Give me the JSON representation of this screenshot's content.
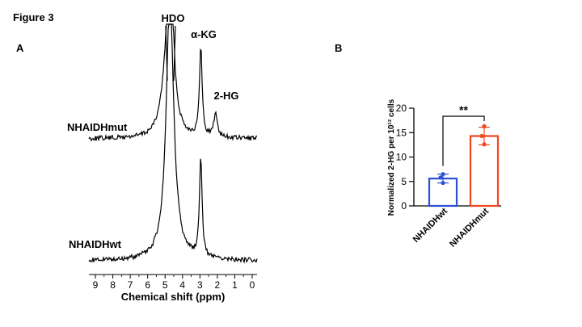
{
  "figure_title": "Figure 3",
  "colors": {
    "wt": "#2b4fd6",
    "mut": "#f0461e",
    "ink": "#000000"
  },
  "chart_data": [
    {
      "panel": "A",
      "type": "line",
      "xlabel": "Chemical shift (ppm)",
      "x_ticks": [
        9,
        8,
        7,
        6,
        5,
        4,
        3,
        2,
        1,
        0
      ],
      "x_reversed": true,
      "xlim": [
        9,
        0
      ],
      "peak_labels": [
        "HDO",
        "α-KG",
        "2-HG"
      ],
      "series": [
        {
          "name": "NHAIDHmut",
          "peaks": [
            {
              "label": "HDO",
              "ppm": 4.72,
              "relative_height": 1.0
            },
            {
              "label": "α-KG",
              "ppm": 2.95,
              "relative_height": 0.95
            },
            {
              "label": "2-HG",
              "ppm": 2.1,
              "relative_height": 0.24
            }
          ]
        },
        {
          "name": "NHAIDHwt",
          "peaks": [
            {
              "label": "HDO",
              "ppm": 4.72,
              "relative_height": 1.0
            },
            {
              "label": "α-KG",
              "ppm": 2.95,
              "relative_height": 0.95
            }
          ]
        }
      ]
    },
    {
      "panel": "B",
      "type": "bar",
      "ylabel": "Normalized 2-HG per 10¹² cells",
      "ylim": [
        0,
        20
      ],
      "y_ticks": [
        0,
        5,
        10,
        15,
        20
      ],
      "categories": [
        "NHAIDHwt",
        "NHAIDHmut"
      ],
      "values": [
        5.6,
        14.3
      ],
      "error": [
        0.9,
        1.8
      ],
      "points": [
        [
          6.5,
          5.8,
          4.7
        ],
        [
          16.3,
          14.3,
          12.6
        ]
      ],
      "significance": "**"
    }
  ]
}
